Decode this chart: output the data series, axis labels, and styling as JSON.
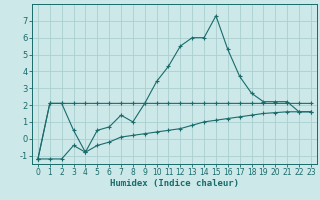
{
  "xlabel": "Humidex (Indice chaleur)",
  "bg_color": "#cce8e8",
  "grid_color": "#aacfcf",
  "line_color": "#1a6b6b",
  "xlim": [
    -0.5,
    23.5
  ],
  "ylim": [
    -1.5,
    8.0
  ],
  "yticks": [
    -1,
    0,
    1,
    2,
    3,
    4,
    5,
    6,
    7
  ],
  "xticks": [
    0,
    1,
    2,
    3,
    4,
    5,
    6,
    7,
    8,
    9,
    10,
    11,
    12,
    13,
    14,
    15,
    16,
    17,
    18,
    19,
    20,
    21,
    22,
    23
  ],
  "series1_x": [
    0,
    1,
    2,
    3,
    4,
    5,
    6,
    7,
    8,
    9,
    10,
    11,
    12,
    13,
    14,
    15,
    16,
    17,
    18,
    19,
    20,
    21,
    22,
    23
  ],
  "series1_y": [
    -1.2,
    2.1,
    2.1,
    2.1,
    2.1,
    2.1,
    2.1,
    2.1,
    2.1,
    2.1,
    2.1,
    2.1,
    2.1,
    2.1,
    2.1,
    2.1,
    2.1,
    2.1,
    2.1,
    2.1,
    2.1,
    2.1,
    2.1,
    2.1
  ],
  "series2_x": [
    0,
    1,
    2,
    3,
    4,
    5,
    6,
    7,
    8,
    9,
    10,
    11,
    12,
    13,
    14,
    15,
    16,
    17,
    18,
    19,
    20,
    21,
    22,
    23
  ],
  "series2_y": [
    -1.2,
    2.1,
    2.1,
    0.5,
    -0.8,
    0.5,
    0.7,
    1.4,
    1.0,
    2.1,
    3.4,
    4.3,
    5.5,
    6.0,
    6.0,
    7.3,
    5.3,
    3.7,
    2.7,
    2.2,
    2.2,
    2.2,
    1.6,
    1.6
  ],
  "series3_x": [
    0,
    1,
    2,
    3,
    4,
    5,
    6,
    7,
    8,
    9,
    10,
    11,
    12,
    13,
    14,
    15,
    16,
    17,
    18,
    19,
    20,
    21,
    22,
    23
  ],
  "series3_y": [
    -1.2,
    -1.2,
    -1.2,
    -0.4,
    -0.8,
    -0.4,
    -0.2,
    0.1,
    0.2,
    0.3,
    0.4,
    0.5,
    0.6,
    0.8,
    1.0,
    1.1,
    1.2,
    1.3,
    1.4,
    1.5,
    1.55,
    1.6,
    1.6,
    1.6
  ]
}
